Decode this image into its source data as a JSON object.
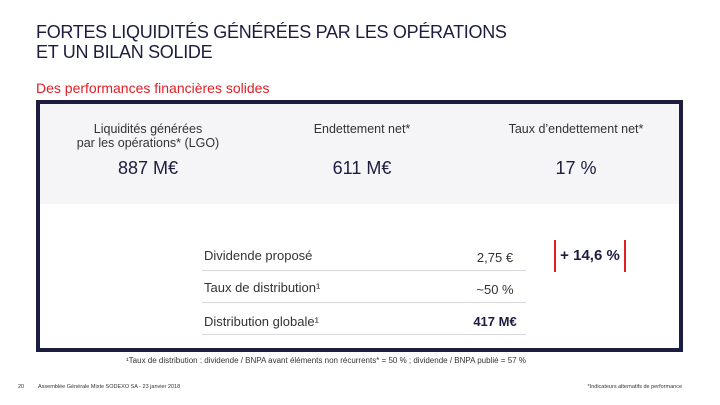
{
  "slide": {
    "title_line1": "FORTES LIQUIDITÉS GÉNÉRÉES PAR LES OPÉRATIONS",
    "title_line2": "ET UN BILAN SOLIDE",
    "subtitle": "Des performances financières solides"
  },
  "kpis": [
    {
      "label_line1": "Liquidités générées",
      "label_line2": "par les opérations* (LGO)",
      "value": "887 M€"
    },
    {
      "label_line1": "Endettement net*",
      "label_line2": "",
      "value": "611 M€"
    },
    {
      "label_line1": "Taux d’endettement net*",
      "label_line2": "",
      "value": "17 %"
    }
  ],
  "dividend": {
    "rows": [
      {
        "label": "Dividende proposé",
        "value": "2,75 €"
      },
      {
        "label": "Taux de distribution¹",
        "value": "~50 %"
      },
      {
        "label": "Distribution globale¹",
        "value": "417 M€"
      }
    ],
    "growth_badge": "+ 14,6 %"
  },
  "footnote": "¹Taux de distribution : dividende / BNPA avant éléments non récurrents* = 50 % ; dividende / BNPA publié = 57 %",
  "footer": {
    "page_number": "20",
    "event": "Assemblée Générale Mixte SODEXO SA - 23 janvier 2018",
    "note": "*Indicateurs alternatifs de performance"
  },
  "colors": {
    "navy": "#1c1d3f",
    "red": "#e11d26"
  }
}
